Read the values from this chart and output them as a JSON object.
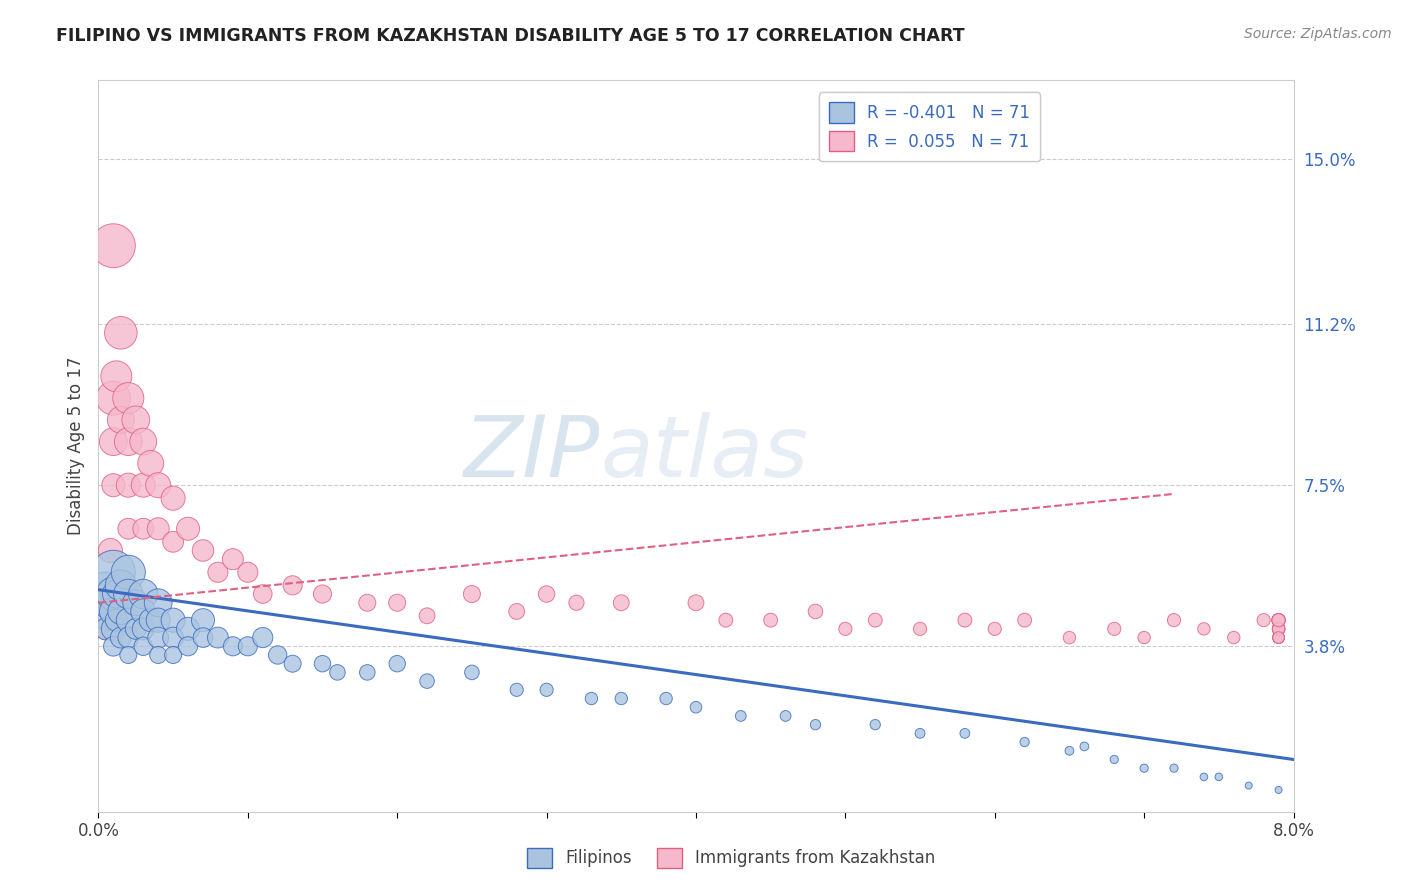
{
  "title": "FILIPINO VS IMMIGRANTS FROM KAZAKHSTAN DISABILITY AGE 5 TO 17 CORRELATION CHART",
  "source_text": "Source: ZipAtlas.com",
  "ylabel": "Disability Age 5 to 17",
  "xlim": [
    0.0,
    0.08
  ],
  "ylim": [
    0.0,
    0.168
  ],
  "xtick_positions": [
    0.0,
    0.01,
    0.02,
    0.03,
    0.04,
    0.05,
    0.06,
    0.07,
    0.08
  ],
  "xtick_labels": [
    "0.0%",
    "",
    "",
    "",
    "",
    "",
    "",
    "",
    "8.0%"
  ],
  "ytick_positions": [
    0.038,
    0.075,
    0.112,
    0.15
  ],
  "ytick_labels": [
    "3.8%",
    "7.5%",
    "11.2%",
    "15.0%"
  ],
  "R_filipino": -0.401,
  "N_filipino": 71,
  "R_kazakhstan": 0.055,
  "N_kazakhstan": 71,
  "filipino_color": "#aac4e0",
  "kazakhstan_color": "#f5b8cc",
  "trend_filipino_color": "#3a6bbf",
  "trend_kazakhstan_color": "#e06080",
  "watermark_zip": "ZIP",
  "watermark_atlas": "atlas",
  "watermark_color": "#c5d8ea",
  "legend_labels": [
    "Filipinos",
    "Immigrants from Kazakhstan"
  ],
  "fil_trend_x": [
    0.0,
    0.08
  ],
  "fil_trend_y": [
    0.051,
    0.012
  ],
  "kaz_trend_x": [
    0.0,
    0.072
  ],
  "kaz_trend_y": [
    0.048,
    0.073
  ],
  "filipino_x": [
    0.0005,
    0.0005,
    0.0005,
    0.0008,
    0.001,
    0.001,
    0.001,
    0.001,
    0.001,
    0.0012,
    0.0012,
    0.0015,
    0.0015,
    0.0015,
    0.002,
    0.002,
    0.002,
    0.002,
    0.002,
    0.0025,
    0.0025,
    0.003,
    0.003,
    0.003,
    0.003,
    0.0035,
    0.004,
    0.004,
    0.004,
    0.004,
    0.005,
    0.005,
    0.005,
    0.006,
    0.006,
    0.007,
    0.007,
    0.008,
    0.009,
    0.01,
    0.011,
    0.012,
    0.013,
    0.015,
    0.016,
    0.018,
    0.02,
    0.022,
    0.025,
    0.028,
    0.03,
    0.033,
    0.035,
    0.038,
    0.04,
    0.043,
    0.046,
    0.048,
    0.052,
    0.055,
    0.058,
    0.062,
    0.065,
    0.066,
    0.068,
    0.07,
    0.072,
    0.074,
    0.075,
    0.077,
    0.079
  ],
  "filipino_y": [
    0.05,
    0.045,
    0.042,
    0.048,
    0.055,
    0.05,
    0.046,
    0.042,
    0.038,
    0.05,
    0.044,
    0.052,
    0.046,
    0.04,
    0.055,
    0.05,
    0.044,
    0.04,
    0.036,
    0.048,
    0.042,
    0.05,
    0.046,
    0.042,
    0.038,
    0.044,
    0.048,
    0.044,
    0.04,
    0.036,
    0.044,
    0.04,
    0.036,
    0.042,
    0.038,
    0.044,
    0.04,
    0.04,
    0.038,
    0.038,
    0.04,
    0.036,
    0.034,
    0.034,
    0.032,
    0.032,
    0.034,
    0.03,
    0.032,
    0.028,
    0.028,
    0.026,
    0.026,
    0.026,
    0.024,
    0.022,
    0.022,
    0.02,
    0.02,
    0.018,
    0.018,
    0.016,
    0.014,
    0.015,
    0.012,
    0.01,
    0.01,
    0.008,
    0.008,
    0.006,
    0.005
  ],
  "filipino_sizes": [
    200,
    80,
    50,
    120,
    200,
    120,
    80,
    60,
    40,
    80,
    50,
    100,
    70,
    45,
    120,
    90,
    60,
    45,
    30,
    70,
    45,
    90,
    65,
    50,
    35,
    55,
    80,
    60,
    45,
    30,
    60,
    45,
    30,
    55,
    38,
    55,
    40,
    45,
    38,
    38,
    42,
    35,
    30,
    28,
    25,
    25,
    28,
    22,
    22,
    18,
    18,
    16,
    16,
    16,
    14,
    12,
    12,
    11,
    11,
    10,
    10,
    9,
    8,
    8,
    7,
    7,
    7,
    6,
    6,
    5,
    5
  ],
  "kazakhstan_x": [
    0.0005,
    0.0005,
    0.0008,
    0.001,
    0.001,
    0.001,
    0.001,
    0.0012,
    0.0015,
    0.0015,
    0.002,
    0.002,
    0.002,
    0.002,
    0.0025,
    0.003,
    0.003,
    0.003,
    0.0035,
    0.004,
    0.004,
    0.005,
    0.005,
    0.006,
    0.007,
    0.008,
    0.009,
    0.01,
    0.011,
    0.013,
    0.015,
    0.018,
    0.02,
    0.022,
    0.025,
    0.028,
    0.03,
    0.032,
    0.035,
    0.04,
    0.042,
    0.045,
    0.048,
    0.05,
    0.052,
    0.055,
    0.058,
    0.06,
    0.062,
    0.065,
    0.068,
    0.07,
    0.072,
    0.074,
    0.076,
    0.078,
    0.079,
    0.079,
    0.079,
    0.079,
    0.079,
    0.079,
    0.079,
    0.079,
    0.079,
    0.079,
    0.079,
    0.079,
    0.079,
    0.079,
    0.079
  ],
  "kazakhstan_y": [
    0.048,
    0.042,
    0.06,
    0.13,
    0.095,
    0.085,
    0.075,
    0.1,
    0.11,
    0.09,
    0.095,
    0.085,
    0.075,
    0.065,
    0.09,
    0.085,
    0.075,
    0.065,
    0.08,
    0.075,
    0.065,
    0.072,
    0.062,
    0.065,
    0.06,
    0.055,
    0.058,
    0.055,
    0.05,
    0.052,
    0.05,
    0.048,
    0.048,
    0.045,
    0.05,
    0.046,
    0.05,
    0.048,
    0.048,
    0.048,
    0.044,
    0.044,
    0.046,
    0.042,
    0.044,
    0.042,
    0.044,
    0.042,
    0.044,
    0.04,
    0.042,
    0.04,
    0.044,
    0.042,
    0.04,
    0.044,
    0.042,
    0.04,
    0.044,
    0.042,
    0.04,
    0.044,
    0.042,
    0.04,
    0.044,
    0.042,
    0.04,
    0.044,
    0.042,
    0.04,
    0.044
  ],
  "kazakhstan_sizes": [
    80,
    50,
    60,
    200,
    120,
    80,
    55,
    100,
    110,
    75,
    100,
    80,
    60,
    45,
    80,
    75,
    60,
    45,
    70,
    65,
    50,
    60,
    45,
    55,
    48,
    42,
    46,
    42,
    36,
    38,
    34,
    30,
    30,
    26,
    30,
    26,
    28,
    24,
    26,
    26,
    20,
    20,
    22,
    18,
    20,
    18,
    20,
    18,
    20,
    16,
    18,
    16,
    18,
    16,
    16,
    18,
    16,
    14,
    18,
    16,
    14,
    18,
    16,
    14,
    18,
    16,
    14,
    18,
    16,
    14,
    18
  ]
}
